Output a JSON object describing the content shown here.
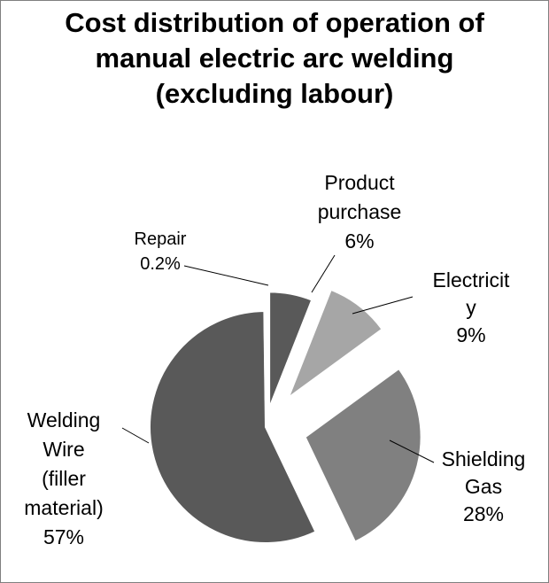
{
  "chart_data": {
    "type": "pie",
    "title_lines": [
      "Cost distribution of operation of",
      "manual electric arc welding",
      "(excluding labour)"
    ],
    "slices": [
      {
        "name": "Product purchase",
        "value": 6,
        "label_lines": [
          "Product",
          "purchase",
          "6%"
        ],
        "color": "#595959"
      },
      {
        "name": "Electricity",
        "value": 9,
        "label_lines": [
          "Electricit",
          "y",
          "9%"
        ],
        "color": "#a6a6a6"
      },
      {
        "name": "Shielding Gas",
        "value": 28,
        "label_lines": [
          "Shielding",
          "Gas",
          "28%"
        ],
        "color": "#808080"
      },
      {
        "name": "Welding Wire (filler material)",
        "value": 57,
        "label_lines": [
          "Welding",
          "Wire",
          "(filler",
          "material)",
          "57%"
        ],
        "color": "#595959"
      },
      {
        "name": "Repair",
        "value": 0.2,
        "label_lines": [
          "Repair",
          "0.2%"
        ],
        "color": "#bfbfbf"
      }
    ],
    "legend": "none"
  }
}
